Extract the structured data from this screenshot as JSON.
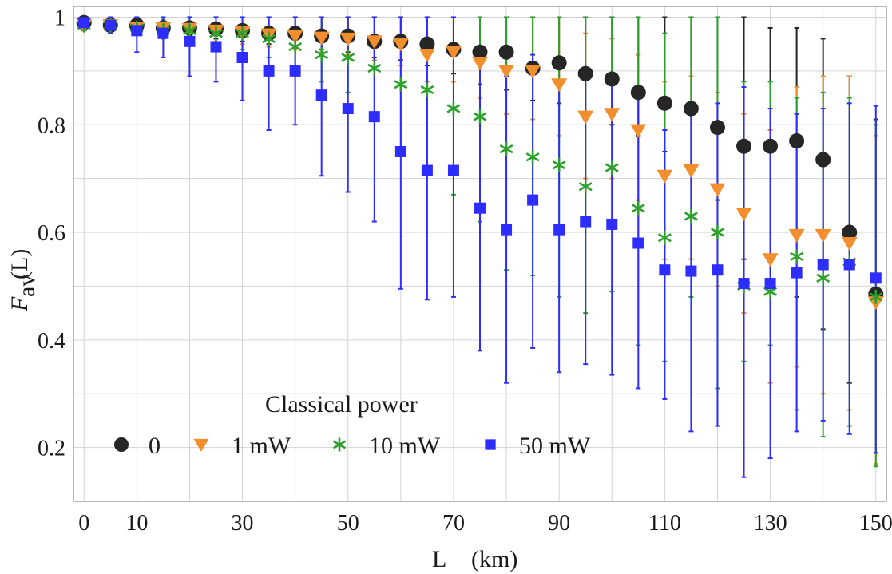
{
  "chart_data": {
    "type": "scatter",
    "title": "",
    "xlabel": "L",
    "xunit": "(km)",
    "ylabel_main": "F",
    "ylabel_sub": "av",
    "ylabel_arg": "(L)",
    "xlim": [
      -2,
      152
    ],
    "ylim": [
      0.1,
      1.02
    ],
    "xticks": [
      0,
      10,
      30,
      50,
      70,
      90,
      110,
      130,
      150
    ],
    "yticks": [
      0.2,
      0.4,
      0.6,
      0.8,
      1
    ],
    "xtick_labels": [
      "0",
      "10",
      "30",
      "50",
      "70",
      "90",
      "110",
      "130",
      "150"
    ],
    "ytick_labels": [
      "0.2",
      "0.4",
      "0.6",
      "0.8",
      "1"
    ],
    "xgrid": [
      0,
      10,
      20,
      30,
      40,
      50,
      60,
      70,
      80,
      90,
      100,
      110,
      120,
      130,
      140,
      150
    ],
    "ygrid": [
      0.2,
      0.3,
      0.4,
      0.5,
      0.6,
      0.7,
      0.8,
      0.9,
      1.0
    ],
    "legend": {
      "title": "Classical power",
      "placement": "bottom-left",
      "entries": [
        "0",
        "1 mW",
        "10 mW",
        "50 mW"
      ]
    },
    "x": [
      0,
      5,
      10,
      15,
      20,
      25,
      30,
      35,
      40,
      45,
      50,
      55,
      60,
      65,
      70,
      75,
      80,
      85,
      90,
      95,
      100,
      105,
      110,
      115,
      120,
      125,
      130,
      135,
      140,
      145,
      150
    ],
    "series": [
      {
        "name": "0",
        "marker": "circle",
        "color": "#262626",
        "values": [
          0.99,
          0.985,
          0.985,
          0.98,
          0.98,
          0.978,
          0.975,
          0.97,
          0.97,
          0.965,
          0.965,
          0.955,
          0.955,
          0.95,
          0.94,
          0.935,
          0.935,
          0.905,
          0.915,
          0.895,
          0.885,
          0.86,
          0.84,
          0.83,
          0.795,
          0.76,
          0.76,
          0.77,
          0.735,
          0.6,
          0.485
        ],
        "err_low": [
          0.98,
          0.98,
          0.975,
          0.97,
          0.965,
          0.96,
          0.955,
          0.95,
          0.945,
          0.94,
          0.935,
          0.925,
          0.92,
          0.91,
          0.895,
          0.875,
          0.865,
          0.845,
          0.84,
          0.815,
          0.8,
          0.78,
          0.75,
          0.72,
          0.66,
          0.55,
          0.5,
          0.48,
          0.42,
          0.32,
          0.19
        ],
        "err_high": [
          1.0,
          1.0,
          1.0,
          1.0,
          1.0,
          1.0,
          1.0,
          1.0,
          1.0,
          1.0,
          1.0,
          1.0,
          1.0,
          1.0,
          1.0,
          1.0,
          1.0,
          1.0,
          1.0,
          1.0,
          1.0,
          1.0,
          1.0,
          1.0,
          1.0,
          1.0,
          0.98,
          0.98,
          0.96,
          0.89,
          0.81
        ]
      },
      {
        "name": "1 mW",
        "marker": "triangle-down",
        "color": "#f28e2b",
        "values": [
          0.985,
          0.985,
          0.98,
          0.98,
          0.978,
          0.975,
          0.972,
          0.968,
          0.965,
          0.962,
          0.96,
          0.955,
          0.95,
          0.93,
          0.935,
          0.915,
          0.9,
          0.9,
          0.875,
          0.815,
          0.82,
          0.79,
          0.705,
          0.715,
          0.68,
          0.635,
          0.55,
          0.595,
          0.595,
          0.58,
          0.47
        ],
        "err_low": [
          0.975,
          0.975,
          0.97,
          0.965,
          0.96,
          0.955,
          0.95,
          0.945,
          0.94,
          0.935,
          0.93,
          0.92,
          0.91,
          0.88,
          0.88,
          0.85,
          0.82,
          0.81,
          0.78,
          0.7,
          0.7,
          0.66,
          0.55,
          0.55,
          0.5,
          0.45,
          0.32,
          0.35,
          0.3,
          0.27,
          0.17
        ],
        "err_high": [
          1.0,
          1.0,
          1.0,
          1.0,
          1.0,
          1.0,
          1.0,
          1.0,
          1.0,
          1.0,
          1.0,
          1.0,
          1.0,
          1.0,
          1.0,
          1.0,
          1.0,
          1.0,
          1.0,
          0.97,
          0.96,
          0.93,
          0.88,
          0.89,
          0.86,
          0.82,
          0.79,
          0.87,
          0.89,
          0.89,
          0.78
        ]
      },
      {
        "name": "10 mW",
        "marker": "asterisk",
        "color": "#2ca02c",
        "values": [
          0.985,
          0.985,
          0.98,
          0.975,
          0.975,
          0.97,
          0.97,
          0.96,
          0.945,
          0.93,
          0.925,
          0.905,
          0.875,
          0.865,
          0.83,
          0.815,
          0.755,
          0.74,
          0.725,
          0.685,
          0.72,
          0.645,
          0.59,
          0.63,
          0.6,
          0.5,
          0.49,
          0.555,
          0.515,
          0.545,
          0.48
        ],
        "err_low": [
          0.975,
          0.975,
          0.97,
          0.96,
          0.955,
          0.945,
          0.94,
          0.925,
          0.9,
          0.88,
          0.86,
          0.82,
          0.75,
          0.72,
          0.67,
          0.62,
          0.53,
          0.52,
          0.48,
          0.45,
          0.49,
          0.39,
          0.36,
          0.48,
          0.31,
          0.36,
          0.39,
          0.27,
          0.22,
          0.24,
          0.165
        ],
        "err_high": [
          0.995,
          0.995,
          0.995,
          0.995,
          1.0,
          1.0,
          1.0,
          1.0,
          1.0,
          1.0,
          1.0,
          1.0,
          1.0,
          1.0,
          1.0,
          1.0,
          1.0,
          1.0,
          1.0,
          1.0,
          1.0,
          1.0,
          0.97,
          1.0,
          1.0,
          0.88,
          0.88,
          0.85,
          0.86,
          0.85,
          0.8
        ]
      },
      {
        "name": "50 mW",
        "marker": "square",
        "color": "#2d2dff",
        "values": [
          0.99,
          0.985,
          0.975,
          0.97,
          0.955,
          0.945,
          0.925,
          0.9,
          0.9,
          0.855,
          0.83,
          0.815,
          0.75,
          0.715,
          0.715,
          0.645,
          0.605,
          0.66,
          0.605,
          0.62,
          0.615,
          0.58,
          0.53,
          0.528,
          0.53,
          0.505,
          0.505,
          0.525,
          0.54,
          0.54,
          0.515
        ],
        "err_low": [
          0.98,
          0.97,
          0.935,
          0.925,
          0.89,
          0.88,
          0.845,
          0.79,
          0.8,
          0.705,
          0.675,
          0.62,
          0.495,
          0.475,
          0.48,
          0.38,
          0.32,
          0.385,
          0.34,
          0.355,
          0.335,
          0.31,
          0.29,
          0.23,
          0.24,
          0.145,
          0.18,
          0.23,
          0.25,
          0.225,
          0.19
        ],
        "err_high": [
          1.0,
          1.0,
          1.0,
          1.0,
          1.0,
          1.0,
          1.0,
          1.0,
          1.0,
          1.0,
          1.0,
          1.0,
          1.0,
          1.0,
          1.0,
          0.92,
          0.89,
          0.93,
          0.87,
          0.89,
          0.89,
          0.85,
          0.79,
          0.82,
          0.84,
          0.87,
          0.83,
          0.82,
          0.83,
          0.84,
          0.835
        ]
      }
    ]
  }
}
